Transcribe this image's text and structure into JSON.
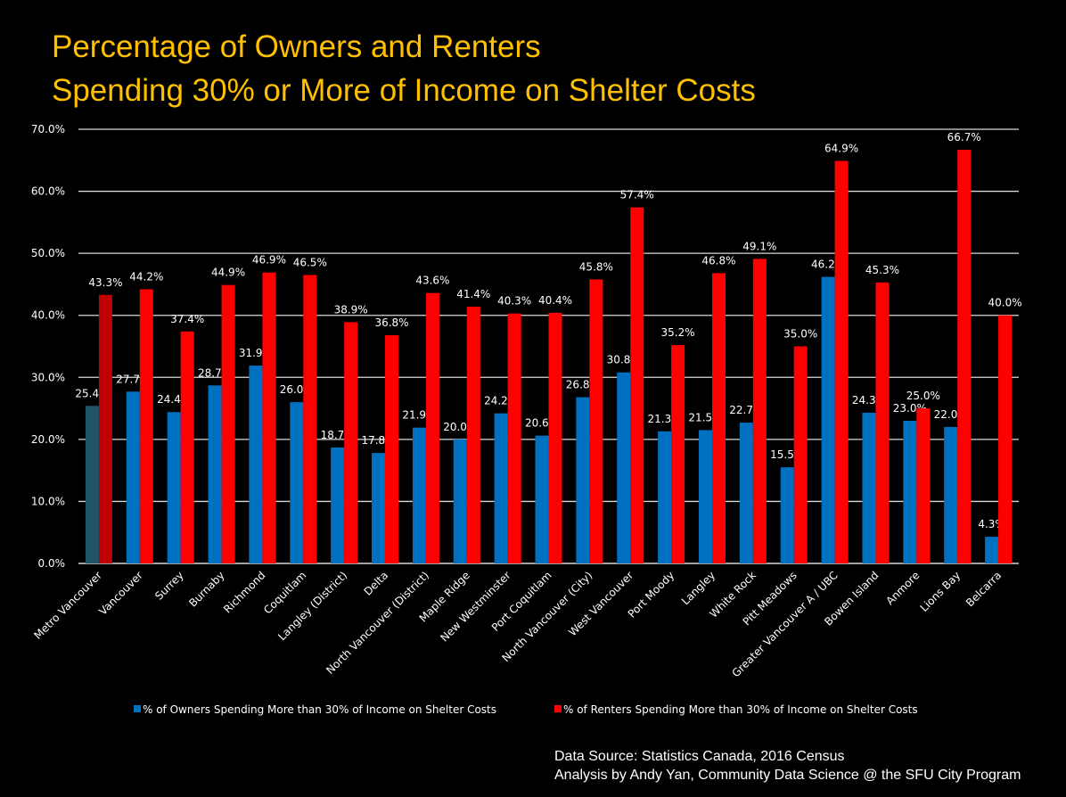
{
  "chart_data": {
    "type": "bar",
    "title": [
      "Percentage of Owners and Renters",
      "Spending 30% or More of Income on Shelter Costs"
    ],
    "categories": [
      "Metro Vancouver",
      "Vancouver",
      "Surrey",
      "Burnaby",
      "Richmond",
      "Coquitlam",
      "Langley (District)",
      "Delta",
      "North Vancouver (District)",
      "Maple Ridge",
      "New Westminster",
      "Port Coquitlam",
      "North Vancouver (City)",
      "West Vancouver",
      "Port Moody",
      "Langley",
      "White Rock",
      "Pitt Meadows",
      "Greater Vancouver A / UBC",
      "Bowen Island",
      "Anmore",
      "Lions Bay",
      "Belcarra"
    ],
    "series": [
      {
        "name": "% of Owners Spending More than 30% of Income on Shelter Costs",
        "color": "#0070c0",
        "highlight_color": "#215468",
        "values": [
          25.4,
          27.7,
          24.4,
          28.7,
          31.9,
          26.0,
          18.7,
          17.8,
          21.9,
          20.0,
          24.2,
          20.6,
          26.8,
          30.8,
          21.3,
          21.5,
          22.7,
          15.5,
          46.2,
          24.3,
          23.0,
          22.0,
          4.3
        ]
      },
      {
        "name": "% of Renters Spending More than 30% of Income on Shelter Costs",
        "color": "#ff0000",
        "highlight_color": "#c00000",
        "values": [
          43.3,
          44.2,
          37.4,
          44.9,
          46.9,
          46.5,
          38.9,
          36.8,
          43.6,
          41.4,
          40.3,
          40.4,
          45.8,
          57.4,
          35.2,
          46.8,
          49.1,
          35.0,
          64.9,
          45.3,
          25.0,
          66.7,
          40.0
        ]
      }
    ],
    "yticks": [
      "0.0%",
      "10.0%",
      "20.0%",
      "30.0%",
      "40.0%",
      "50.0%",
      "60.0%",
      "70.0%"
    ],
    "ylim": [
      0,
      70
    ],
    "grid": true,
    "legend_position": "bottom",
    "data_labels": true
  },
  "source": [
    "Data Source: Statistics Canada, 2016 Census",
    "Analysis by Andy Yan, Community Data Science @ the SFU City Program"
  ]
}
